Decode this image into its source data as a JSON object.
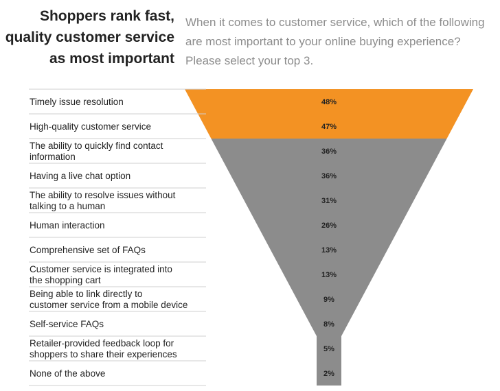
{
  "headline": {
    "lines": [
      "Shoppers rank fast,",
      "quality customer service",
      "as most important"
    ]
  },
  "question": {
    "lines": [
      "When it comes to customer service, which of the following",
      "are most important to your online buying experience?",
      "Please select your top 3."
    ]
  },
  "colors": {
    "highlight": "#f39223",
    "default": "#8c8c8c",
    "divider": "#cfcfcf"
  },
  "chart_data": {
    "type": "funnel",
    "title": "When it comes to customer service, which of the following are most important to your online buying experience? Please select your top 3.",
    "value_unit": "%",
    "categories": [
      "Timely issue resolution",
      "High-quality customer service",
      "The ability to quickly find contact information",
      "Having a live chat option",
      "The ability to resolve issues without talking to a human",
      "Human interaction",
      "Comprehensive set of FAQs",
      "Customer service is integrated into the shopping cart",
      "Being able to link directly to customer service from a mobile device",
      "Self-service FAQs",
      "Retailer-provided feedback loop for shoppers to share their experiences",
      "None of the above"
    ],
    "label_lines": [
      [
        "Timely issue resolution"
      ],
      [
        "High-quality customer service"
      ],
      [
        "The ability to quickly find contact",
        "information"
      ],
      [
        "Having a live chat option"
      ],
      [
        "The ability to resolve issues without",
        "talking to a human"
      ],
      [
        "Human interaction"
      ],
      [
        "Comprehensive set of FAQs"
      ],
      [
        "Customer service is integrated into",
        "the shopping cart"
      ],
      [
        "Being able to link directly to",
        "customer service from a mobile device"
      ],
      [
        "Self-service FAQs"
      ],
      [
        "Retailer-provided feedback loop for",
        "shoppers to share their experiences"
      ],
      [
        "None of the above"
      ]
    ],
    "values": [
      48,
      47,
      36,
      36,
      31,
      26,
      13,
      13,
      9,
      8,
      5,
      2
    ],
    "value_labels": [
      "48%",
      "47%",
      "36%",
      "36%",
      "31%",
      "26%",
      "13%",
      "13%",
      "9%",
      "8%",
      "5%",
      "2%"
    ],
    "highlighted": [
      true,
      true,
      false,
      false,
      false,
      false,
      false,
      false,
      false,
      false,
      false,
      false
    ]
  }
}
